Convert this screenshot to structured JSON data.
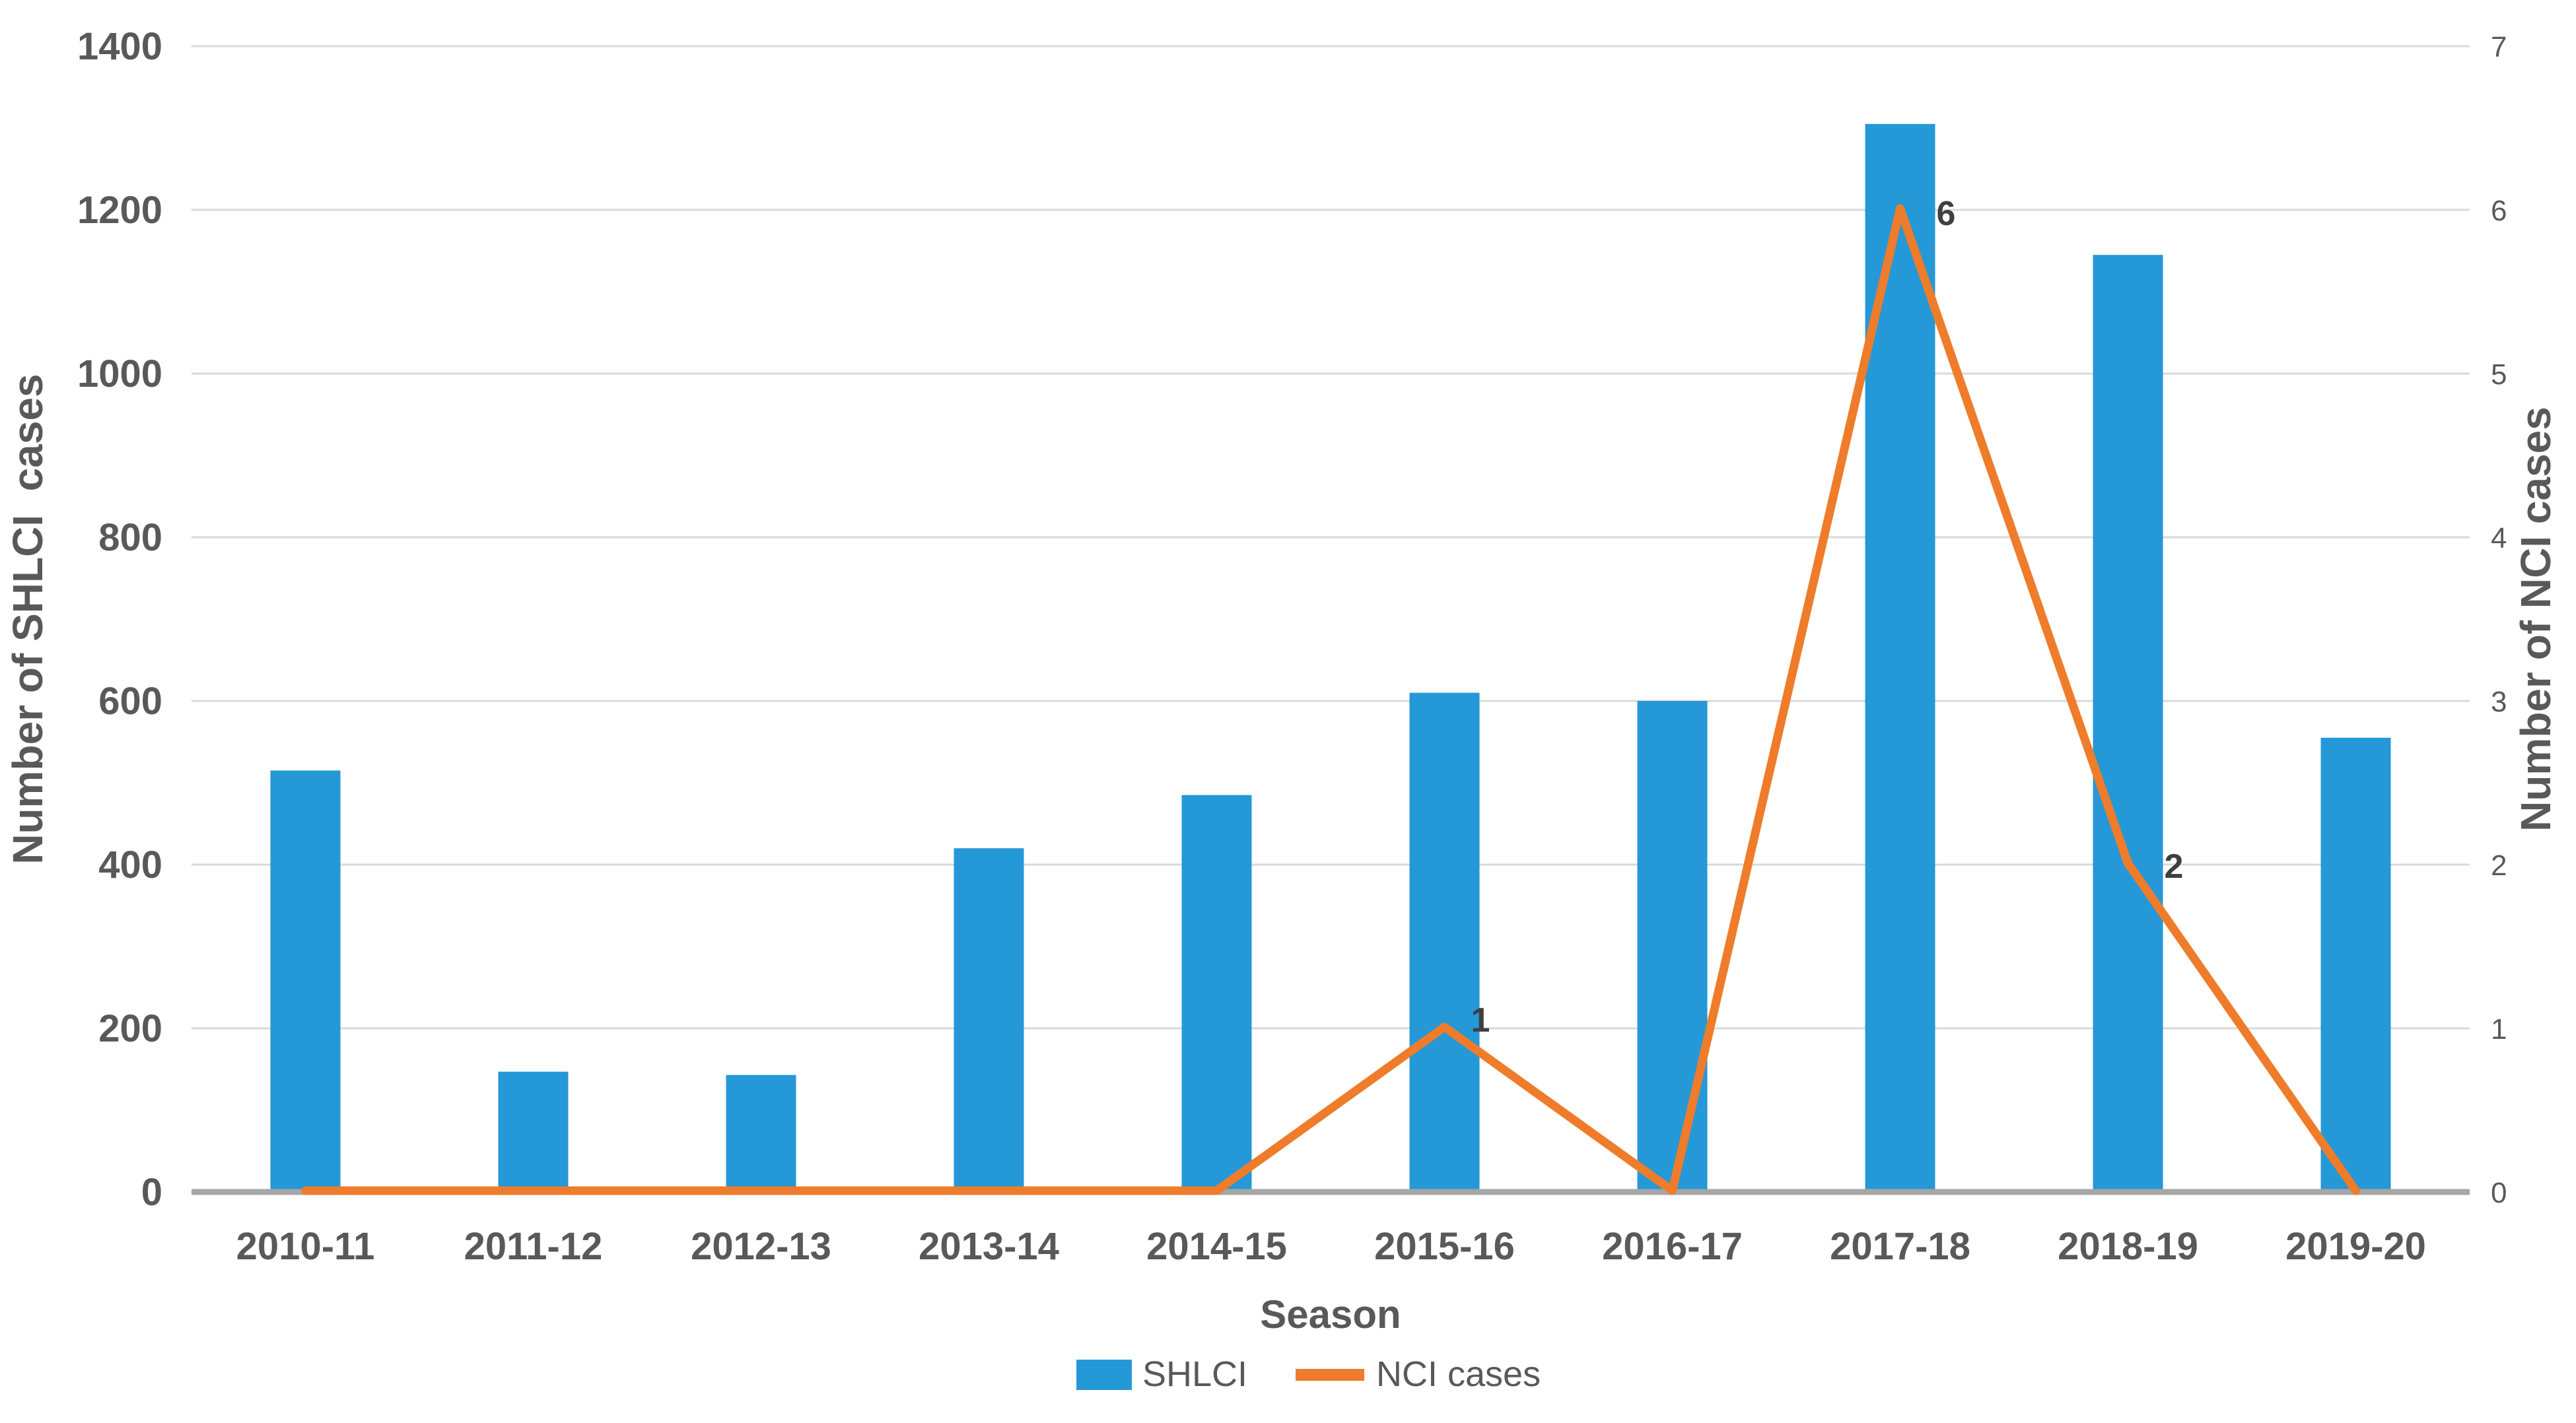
{
  "chart_data": {
    "type": "combo",
    "categories": [
      "2010-11",
      "2011-12",
      "2012-13",
      "2013-14",
      "2014-15",
      "2015-16",
      "2016-17",
      "2017-18",
      "2018-19",
      "2019-20"
    ],
    "series": [
      {
        "name": "SHLCI",
        "type": "bar",
        "axis": "left",
        "color": "#2598d7",
        "values": [
          515,
          147,
          143,
          420,
          485,
          610,
          600,
          1305,
          1145,
          555
        ]
      },
      {
        "name": "NCI cases",
        "type": "line",
        "axis": "right",
        "color": "#ee7c2b",
        "values": [
          0,
          0,
          0,
          0,
          0,
          1,
          0,
          6,
          2,
          0
        ],
        "point_labels": [
          "",
          "",
          "",
          "",
          "",
          "1",
          "",
          "6",
          "2",
          ""
        ]
      }
    ],
    "x_axis": {
      "title": "Season"
    },
    "left_axis": {
      "title": "Number of SHLCI  cases",
      "min": 0,
      "max": 1400,
      "step": 200,
      "ticks": [
        0,
        200,
        400,
        600,
        800,
        1000,
        1200,
        1400
      ]
    },
    "right_axis": {
      "title": "Number of NCI cases",
      "min": 0,
      "max": 7,
      "step": 1,
      "ticks": [
        0,
        1,
        2,
        3,
        4,
        5,
        6,
        7
      ]
    },
    "grid": true,
    "legend_position": "bottom",
    "colors": {
      "background": "#ffffff",
      "gridline": "#d9d9d9",
      "axis_line": "#a6a6a6",
      "tick_text": "#595959",
      "data_label": "#3f3f3f"
    }
  }
}
